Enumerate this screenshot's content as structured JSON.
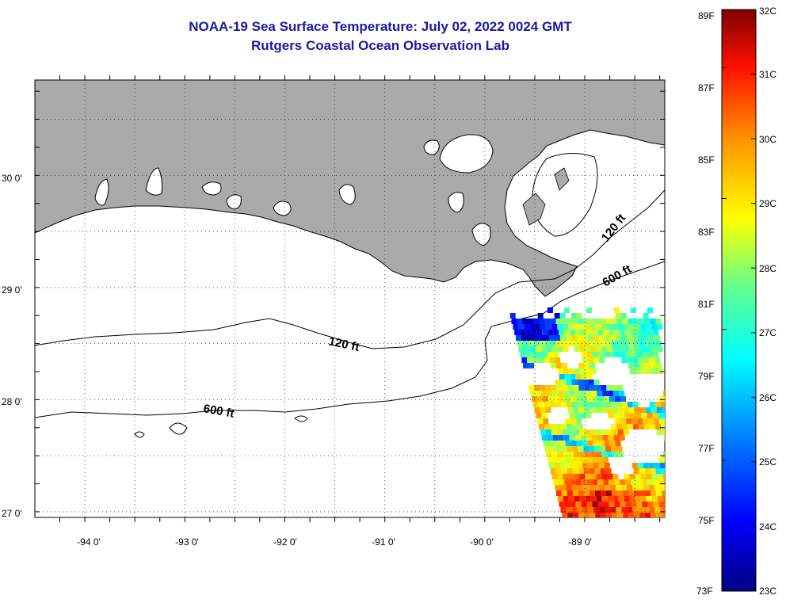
{
  "header": {
    "title": "NOAA-19 Sea Surface Temperature:  July 02, 2022 0024 GMT",
    "subtitle": "Rutgers Coastal Ocean Observation Lab"
  },
  "axes": {
    "lon_labels": [
      "-94 0'",
      "-93 0'",
      "-92 0'",
      "-91 0'",
      "-90 0'",
      "-89 0'"
    ],
    "lat_labels": [
      "30 0'",
      "29 0'",
      "28 0'",
      "27 0'"
    ],
    "lon_range": [
      -94.5,
      -88.2
    ],
    "lat_range": [
      26.95,
      30.85
    ]
  },
  "contours": {
    "label_120_west": "120 ft",
    "label_600_west": "600 ft",
    "label_120_east": "120 ft",
    "label_600_east": "600 ft"
  },
  "colorbar": {
    "fahrenheit": [
      "89F",
      "87F",
      "85F",
      "83F",
      "81F",
      "79F",
      "77F",
      "75F",
      "73F"
    ],
    "celsius": [
      "32C",
      "31C",
      "30C",
      "29C",
      "28C",
      "27C",
      "26C",
      "25C",
      "24C",
      "23C"
    ],
    "range_c": [
      23,
      32
    ]
  },
  "colors": {
    "land": "#aaaaaa",
    "title": "#1a1aa0"
  }
}
